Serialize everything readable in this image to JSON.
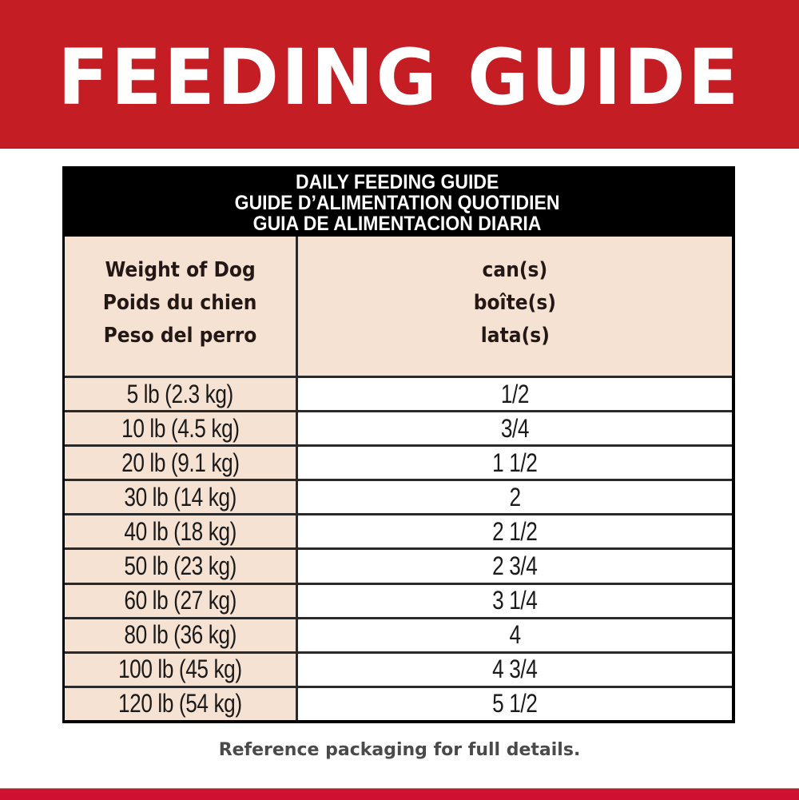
{
  "banner": {
    "title": "FEEDING GUIDE",
    "background_color": "#C41E24",
    "text_color": "#FFFFFF"
  },
  "table": {
    "title_lines": [
      "DAILY FEEDING GUIDE",
      "GUIDE D’ALIMENTATION QUOTIDIEN",
      "GUIA DE ALIMENTACION DIARIA"
    ],
    "columns": [
      {
        "key": "weight",
        "header_lines": [
          "Weight of Dog",
          "Poids du chien",
          "Peso del perro"
        ]
      },
      {
        "key": "cans",
        "header_lines": [
          "can(s)",
          "boîte(s)",
          "lata(s)"
        ]
      }
    ],
    "rows": [
      {
        "weight": "5 lb (2.3 kg)",
        "cans": "1/2"
      },
      {
        "weight": "10 lb (4.5 kg)",
        "cans": "3/4"
      },
      {
        "weight": "20 lb (9.1 kg)",
        "cans": "1 1/2"
      },
      {
        "weight": "30 lb (14 kg)",
        "cans": "2"
      },
      {
        "weight": "40 lb (18 kg)",
        "cans": "2 1/2"
      },
      {
        "weight": "50 lb (23 kg)",
        "cans": "2 3/4"
      },
      {
        "weight": "60 lb (27 kg)",
        "cans": "3 1/4"
      },
      {
        "weight": "80 lb (36 kg)",
        "cans": "4"
      },
      {
        "weight": "100 lb (45 kg)",
        "cans": "4 3/4"
      },
      {
        "weight": "120 lb (54 kg)",
        "cans": "5 1/2"
      }
    ],
    "header_bg_color": "#000000",
    "label_column_color": "#F6E2D3",
    "value_column_color": "#FFFFFF"
  },
  "footer": {
    "note": "Reference packaging for full details.",
    "strip_color": "#CF1030"
  }
}
